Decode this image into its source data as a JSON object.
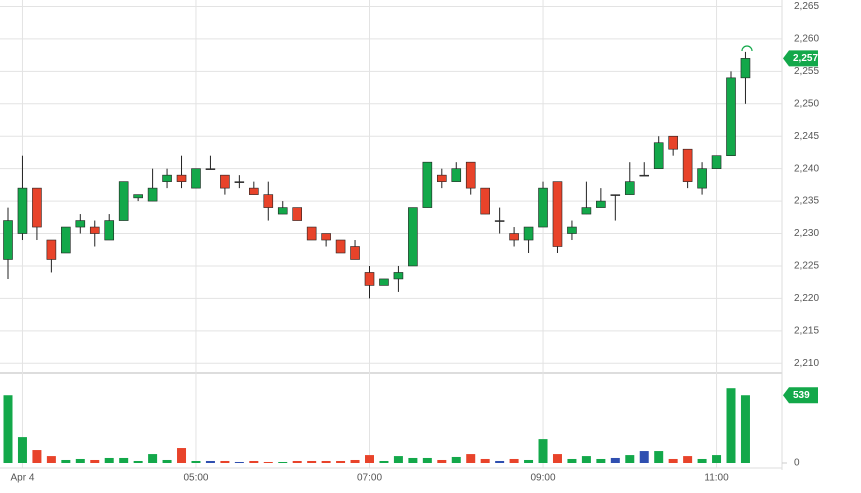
{
  "chart_data": {
    "type": "candlestick",
    "categories": [
      null,
      "Apr 4",
      null,
      null,
      null,
      null,
      null,
      null,
      null,
      null,
      null,
      null,
      null,
      "05:00",
      null,
      null,
      null,
      null,
      null,
      null,
      null,
      null,
      null,
      null,
      null,
      "07:00",
      null,
      null,
      null,
      null,
      null,
      null,
      null,
      null,
      null,
      null,
      null,
      "09:00",
      null,
      null,
      null,
      null,
      null,
      null,
      null,
      null,
      null,
      null,
      null,
      "11:00",
      null,
      null
    ],
    "open": [
      2226,
      2230,
      2237,
      2229,
      2227,
      2231,
      2231,
      2229,
      2232,
      2235.5,
      2235,
      2238,
      2239,
      2237,
      2240,
      2239,
      2238,
      2237,
      2236,
      2233,
      2234,
      2231,
      2230,
      2229,
      2228,
      2224,
      2222,
      2223,
      2225,
      2234,
      2239,
      2238,
      2241,
      2237,
      2232,
      2230,
      2229,
      2231,
      2238,
      2230,
      2233,
      2234,
      2236,
      2236,
      2239,
      2240,
      2245,
      2243,
      2237,
      2240,
      2242,
      2254
    ],
    "high": [
      2234,
      2242,
      2237,
      2229,
      2231,
      2233,
      2232,
      2233,
      2238,
      2236,
      2240,
      2240,
      2242,
      2240,
      2242,
      2239,
      2239,
      2238,
      2238,
      2235,
      2234,
      2231,
      2230,
      2229,
      2229,
      2225,
      2223,
      2225,
      2234,
      2241,
      2240,
      2241,
      2241,
      2237,
      2234,
      2231,
      2231,
      2238,
      2238,
      2232,
      2238,
      2237,
      2236,
      2241,
      2241,
      2245,
      2245,
      2243,
      2241,
      2242,
      2255,
      2258
    ],
    "low": [
      2223,
      2229,
      2229,
      2224,
      2227,
      2230,
      2228,
      2229,
      2232,
      2235,
      2235,
      2237,
      2237,
      2237,
      2240,
      2236,
      2237,
      2236,
      2232,
      2233,
      2232,
      2229,
      2228,
      2227,
      2226,
      2220,
      2222,
      2221,
      2225,
      2234,
      2237,
      2238,
      2236,
      2233,
      2230,
      2228,
      2227,
      2231,
      2227,
      2229,
      2233,
      2234,
      2232,
      2236,
      2239,
      2240,
      2242,
      2237,
      2236,
      2240,
      2242,
      2250
    ],
    "close": [
      2232,
      2237,
      2231,
      2226,
      2231,
      2232,
      2230,
      2232,
      2238,
      2236,
      2237,
      2239,
      2238,
      2240,
      2240,
      2237,
      2238,
      2236,
      2234,
      2234,
      2232,
      2229,
      2229,
      2227,
      2226,
      2222,
      2223,
      2224,
      2234,
      2241,
      2238,
      2240,
      2237,
      2233,
      2232,
      2229,
      2231,
      2237,
      2228,
      2231,
      2234,
      2235,
      2236,
      2238,
      2239,
      2244,
      2243,
      2238,
      2240,
      2242,
      2254,
      2257
    ],
    "volume": [
      539,
      206,
      103,
      55,
      24,
      32,
      24,
      40,
      40,
      16,
      71,
      24,
      119,
      16,
      16,
      16,
      8,
      16,
      8,
      8,
      16,
      16,
      16,
      16,
      24,
      63,
      16,
      55,
      40,
      40,
      24,
      48,
      71,
      32,
      16,
      32,
      24,
      190,
      71,
      32,
      55,
      32,
      40,
      63,
      95,
      95,
      32,
      55,
      32,
      63,
      595,
      539
    ],
    "up_color": "#13a84a",
    "down_color": "#e8432a",
    "flat_color": "#2f4fb0",
    "ylim": [
      2208.5,
      2266
    ],
    "yticks": [
      {
        "value": 2210,
        "label": "2,210"
      },
      {
        "value": 2215,
        "label": "2,215"
      },
      {
        "value": 2220,
        "label": "2,220"
      },
      {
        "value": 2225,
        "label": "2,225"
      },
      {
        "value": 2230,
        "label": "2,230"
      },
      {
        "value": 2235,
        "label": "2,235"
      },
      {
        "value": 2240,
        "label": "2,240"
      },
      {
        "value": 2245,
        "label": "2,245"
      },
      {
        "value": 2250,
        "label": "2,250"
      },
      {
        "value": 2255,
        "label": "2,255"
      },
      {
        "value": 2260,
        "label": "2,260"
      },
      {
        "value": 2265,
        "label": "2,265"
      }
    ],
    "volume_ylim": [
      0,
      700
    ],
    "volume_yticks": [
      0
    ],
    "last_price": {
      "value": 2257,
      "label": "2,257"
    },
    "last_volume": 539,
    "grid": true
  }
}
